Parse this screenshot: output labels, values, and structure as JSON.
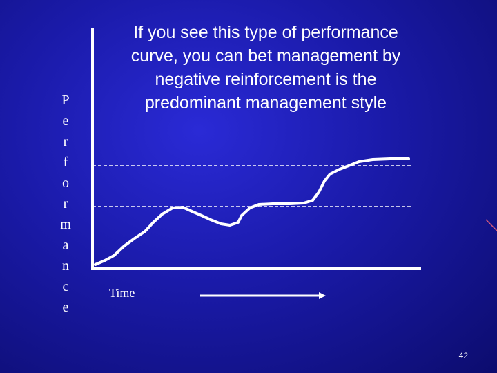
{
  "slide": {
    "title_lines": [
      "If you see this type of performance",
      "curve, you can bet management by",
      "negative reinforcement is the",
      "predominant management style"
    ],
    "vertical_label_letters": [
      "P",
      "e",
      "r",
      "f",
      "o",
      "r",
      "m",
      "a",
      "n",
      "c",
      "e"
    ],
    "x_axis_label": "Time",
    "page_number": "42"
  }
}
